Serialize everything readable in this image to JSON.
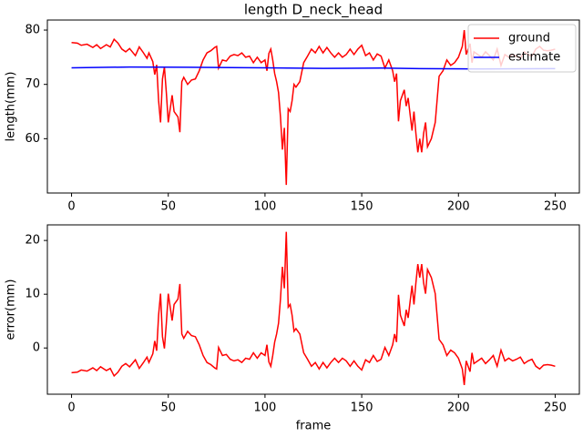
{
  "chart_data": [
    {
      "type": "line",
      "title": "length D_neck_head",
      "ylabel": "length(mm)",
      "x": [
        0,
        3,
        5,
        8,
        11,
        13,
        15,
        18,
        20,
        22,
        24,
        26,
        28,
        30,
        33,
        35,
        37,
        39,
        40,
        42,
        43,
        44,
        45,
        46,
        47,
        48,
        49,
        50,
        51,
        52,
        53,
        55,
        56,
        57,
        58,
        60,
        62,
        64,
        66,
        68,
        70,
        72,
        74,
        75,
        76,
        78,
        80,
        82,
        84,
        86,
        88,
        90,
        92,
        94,
        96,
        98,
        100,
        101,
        102,
        103,
        104,
        105,
        106,
        107,
        108,
        109,
        110,
        111,
        112,
        113,
        114,
        115,
        116,
        118,
        120,
        122,
        124,
        126,
        128,
        130,
        132,
        134,
        136,
        138,
        140,
        142,
        144,
        146,
        148,
        150,
        152,
        154,
        156,
        158,
        160,
        162,
        164,
        166,
        167,
        168,
        169,
        170,
        172,
        173,
        174,
        175,
        176,
        177,
        178,
        179,
        180,
        181,
        182,
        183,
        184,
        186,
        188,
        190,
        192,
        194,
        196,
        198,
        200,
        202,
        203,
        204,
        206,
        207,
        208,
        210,
        212,
        214,
        216,
        218,
        220,
        222,
        224,
        226,
        228,
        230,
        232,
        234,
        236,
        238,
        240,
        242,
        244,
        246,
        248,
        250
      ],
      "series": [
        {
          "name": "ground",
          "color": "#ff0000",
          "values": [
            77.7,
            77.6,
            77.2,
            77.4,
            76.8,
            77.3,
            76.6,
            77.3,
            76.9,
            78.3,
            77.6,
            76.5,
            76.0,
            76.6,
            75.3,
            76.9,
            75.9,
            74.8,
            75.8,
            74.2,
            71.8,
            73.6,
            67.0,
            63.0,
            71.0,
            73.2,
            68.5,
            63.0,
            65.5,
            68.0,
            65.0,
            64.0,
            61.2,
            70.5,
            71.3,
            70.0,
            70.8,
            71.0,
            72.5,
            74.5,
            75.8,
            76.2,
            76.8,
            77.0,
            73.0,
            74.5,
            74.3,
            75.2,
            75.5,
            75.3,
            75.8,
            75.0,
            75.2,
            74.0,
            75.0,
            74.0,
            74.5,
            72.5,
            75.7,
            76.5,
            74.5,
            72.0,
            70.5,
            68.5,
            64.0,
            58.0,
            62.0,
            51.5,
            65.5,
            65.0,
            67.0,
            70.0,
            69.5,
            70.5,
            74.0,
            75.2,
            76.5,
            75.8,
            77.0,
            75.8,
            76.8,
            75.8,
            75.0,
            75.8,
            75.0,
            75.5,
            76.5,
            75.5,
            76.5,
            77.2,
            75.3,
            75.8,
            74.5,
            75.6,
            75.2,
            73.0,
            74.5,
            72.5,
            70.5,
            72.0,
            63.2,
            67.0,
            69.0,
            66.0,
            67.5,
            64.5,
            61.5,
            65.0,
            61.0,
            57.5,
            60.0,
            57.5,
            61.0,
            63.0,
            58.5,
            60.0,
            63.0,
            71.5,
            72.5,
            74.5,
            73.5,
            74.0,
            75.0,
            77.0,
            80.0,
            75.5,
            77.5,
            74.0,
            76.0,
            75.5,
            75.0,
            76.0,
            75.3,
            74.5,
            76.5,
            73.5,
            75.5,
            75.0,
            75.5,
            75.2,
            74.8,
            76.0,
            75.5,
            75.2,
            76.5,
            77.0,
            76.3,
            76.2,
            76.3,
            76.5
          ]
        },
        {
          "name": "estimate",
          "color": "#0000ff",
          "x": [
            0,
            30,
            60,
            100,
            130,
            160,
            180,
            210,
            250
          ],
          "values": [
            73.05,
            73.2,
            73.15,
            73.05,
            72.95,
            73.0,
            72.9,
            72.85,
            72.9
          ]
        }
      ],
      "xlim": [
        -12.5,
        262.5
      ],
      "xticks": [
        0,
        50,
        100,
        150,
        200,
        250
      ],
      "ylim": [
        50.0,
        81.85
      ],
      "yticks": [
        60,
        70,
        80
      ],
      "legend": "upper right"
    },
    {
      "type": "line",
      "ylabel": "error(mm)",
      "xlabel": "frame",
      "x": [
        0,
        3,
        5,
        8,
        11,
        13,
        15,
        18,
        20,
        22,
        24,
        26,
        28,
        30,
        33,
        35,
        37,
        39,
        40,
        42,
        43,
        44,
        45,
        46,
        47,
        48,
        49,
        50,
        51,
        52,
        53,
        55,
        56,
        57,
        58,
        60,
        62,
        64,
        66,
        68,
        70,
        72,
        74,
        75,
        76,
        78,
        80,
        82,
        84,
        86,
        88,
        90,
        92,
        94,
        96,
        98,
        100,
        101,
        102,
        103,
        104,
        105,
        106,
        107,
        108,
        109,
        110,
        111,
        112,
        113,
        114,
        115,
        116,
        118,
        120,
        122,
        124,
        126,
        128,
        130,
        132,
        134,
        136,
        138,
        140,
        142,
        144,
        146,
        148,
        150,
        152,
        154,
        156,
        158,
        160,
        162,
        164,
        166,
        167,
        168,
        169,
        170,
        172,
        173,
        174,
        175,
        176,
        177,
        178,
        179,
        180,
        181,
        182,
        183,
        184,
        186,
        188,
        190,
        192,
        194,
        196,
        198,
        200,
        202,
        203,
        204,
        206,
        207,
        208,
        210,
        212,
        214,
        216,
        218,
        220,
        222,
        224,
        226,
        228,
        230,
        232,
        234,
        236,
        238,
        240,
        242,
        244,
        246,
        248,
        250
      ],
      "series": [
        {
          "color": "#ff0000",
          "values": [
            -4.6,
            -4.5,
            -4.1,
            -4.3,
            -3.7,
            -4.2,
            -3.5,
            -4.2,
            -3.8,
            -5.2,
            -4.5,
            -3.4,
            -2.9,
            -3.5,
            -2.2,
            -3.8,
            -2.8,
            -1.7,
            -2.7,
            -1.1,
            1.3,
            -0.5,
            6.1,
            10.1,
            2.1,
            -0.1,
            4.6,
            10.1,
            7.6,
            5.1,
            8.1,
            9.1,
            11.9,
            2.6,
            1.8,
            3.1,
            2.3,
            2.1,
            0.6,
            -1.4,
            -2.7,
            -3.1,
            -3.7,
            -3.9,
            0.1,
            -1.4,
            -1.2,
            -2.1,
            -2.4,
            -2.2,
            -2.7,
            -1.9,
            -2.1,
            -0.9,
            -1.9,
            -0.9,
            -1.4,
            0.6,
            -2.6,
            -3.4,
            -1.4,
            1.1,
            2.6,
            4.6,
            9.1,
            15.1,
            11.1,
            21.6,
            7.6,
            8.1,
            6.1,
            3.1,
            3.6,
            2.6,
            -0.9,
            -2.1,
            -3.4,
            -2.7,
            -3.9,
            -2.7,
            -3.7,
            -2.7,
            -1.9,
            -2.7,
            -1.9,
            -2.4,
            -3.4,
            -2.4,
            -3.4,
            -4.1,
            -2.2,
            -2.7,
            -1.4,
            -2.5,
            -2.1,
            0.1,
            -1.4,
            0.6,
            2.6,
            1.1,
            9.9,
            6.1,
            4.1,
            7.1,
            5.6,
            8.6,
            11.6,
            8.1,
            12.1,
            15.6,
            13.1,
            15.6,
            12.1,
            10.1,
            14.6,
            13.1,
            10.1,
            1.6,
            0.6,
            -1.4,
            -0.4,
            -0.9,
            -1.9,
            -3.9,
            -6.9,
            -2.4,
            -4.4,
            -0.9,
            -2.9,
            -2.4,
            -1.9,
            -2.9,
            -2.2,
            -1.4,
            -3.4,
            -0.4,
            -2.4,
            -1.9,
            -2.4,
            -2.1,
            -1.7,
            -2.9,
            -2.4,
            -2.1,
            -3.4,
            -3.9,
            -3.2,
            -3.1,
            -3.2,
            -3.4
          ]
        }
      ],
      "xlim": [
        -12.5,
        262.5
      ],
      "xticks": [
        0,
        50,
        100,
        150,
        200,
        250
      ],
      "ylim": [
        -8.6,
        22.9
      ],
      "yticks": [
        0,
        10,
        20
      ]
    }
  ]
}
